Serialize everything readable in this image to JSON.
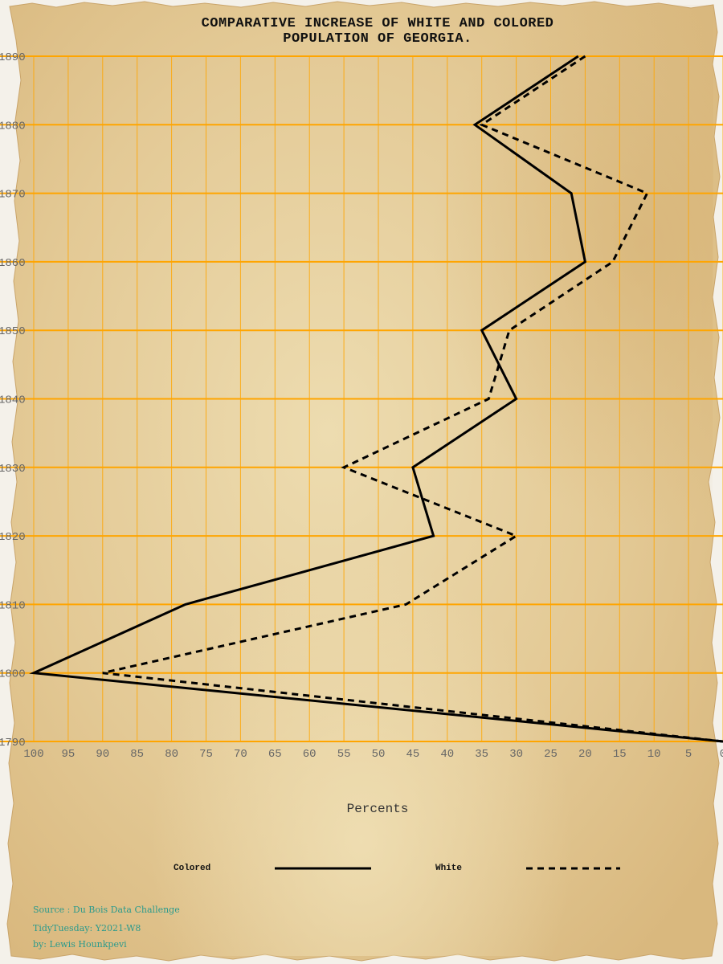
{
  "colors": {
    "grid": "#ffa500",
    "line": "#000000",
    "paper": "#e4ca95",
    "tick_text": "#666666",
    "caption": "#2a9a8c"
  },
  "chart_data": {
    "type": "line",
    "title_lines": [
      "COMPARATIVE INCREASE OF WHITE AND COLORED",
      "POPULATION OF GEORGIA."
    ],
    "xlabel": "Percents",
    "ylabel": "",
    "x_axis": "reversed",
    "xlim": [
      100,
      0
    ],
    "ylim": [
      1790,
      1890
    ],
    "x_ticks": [
      100,
      95,
      90,
      85,
      80,
      75,
      70,
      65,
      60,
      55,
      50,
      45,
      40,
      35,
      30,
      25,
      20,
      15,
      10,
      5,
      0
    ],
    "y_ticks": [
      1790,
      1800,
      1810,
      1820,
      1830,
      1840,
      1850,
      1860,
      1870,
      1880,
      1890
    ],
    "grid": true,
    "legend_position": "bottom",
    "series": [
      {
        "name": "Colored",
        "style": "solid",
        "points": [
          {
            "year": 1790,
            "percent": 0
          },
          {
            "year": 1800,
            "percent": 100
          },
          {
            "year": 1810,
            "percent": 78
          },
          {
            "year": 1820,
            "percent": 42
          },
          {
            "year": 1830,
            "percent": 45
          },
          {
            "year": 1840,
            "percent": 30
          },
          {
            "year": 1850,
            "percent": 35
          },
          {
            "year": 1860,
            "percent": 20
          },
          {
            "year": 1870,
            "percent": 22
          },
          {
            "year": 1880,
            "percent": 36
          },
          {
            "year": 1890,
            "percent": 21
          }
        ]
      },
      {
        "name": "White",
        "style": "dashed",
        "points": [
          {
            "year": 1790,
            "percent": 0
          },
          {
            "year": 1800,
            "percent": 90
          },
          {
            "year": 1810,
            "percent": 46
          },
          {
            "year": 1820,
            "percent": 30
          },
          {
            "year": 1830,
            "percent": 55
          },
          {
            "year": 1840,
            "percent": 34
          },
          {
            "year": 1850,
            "percent": 31
          },
          {
            "year": 1860,
            "percent": 16
          },
          {
            "year": 1870,
            "percent": 11
          },
          {
            "year": 1880,
            "percent": 35
          },
          {
            "year": 1890,
            "percent": 20
          }
        ]
      }
    ]
  },
  "legend": {
    "colored_label": "Colored",
    "white_label": "White"
  },
  "captions": {
    "source": "Source : Du Bois Data Challenge",
    "tidytuesday": "TidyTuesday: Y2021-W8",
    "author": "by: Lewis Hounkpevi"
  }
}
